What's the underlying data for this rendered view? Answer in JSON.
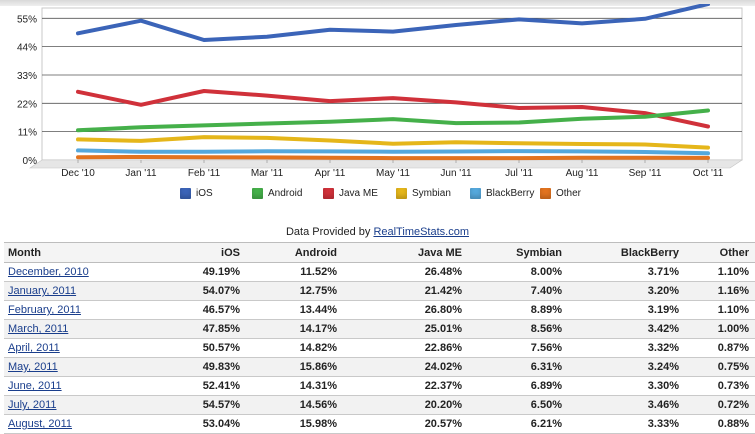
{
  "chart_data": {
    "type": "line",
    "categories": [
      "Dec '10",
      "Jan '11",
      "Feb '11",
      "Mar '11",
      "Apr '11",
      "May '11",
      "Jun '11",
      "Jul '11",
      "Aug '11",
      "Sep '11",
      "Oct '11"
    ],
    "y_ticks": [
      "0%",
      "11%",
      "22%",
      "33%",
      "44%",
      "55%"
    ],
    "ylim": [
      0,
      59
    ],
    "grid": true,
    "legend_position": "bottom",
    "series": [
      {
        "name": "iOS",
        "color": "#3b64b8",
        "values": [
          49.19,
          54.07,
          46.57,
          47.85,
          50.57,
          49.83,
          52.41,
          54.57,
          53.04,
          54.8,
          60.5
        ]
      },
      {
        "name": "Android",
        "color": "#45b04a",
        "values": [
          11.52,
          12.75,
          13.44,
          14.17,
          14.82,
          15.86,
          14.31,
          14.56,
          15.98,
          16.8,
          19.2
        ]
      },
      {
        "name": "Java ME",
        "color": "#d0313a",
        "values": [
          26.48,
          21.42,
          26.8,
          25.01,
          22.86,
          24.02,
          22.37,
          20.2,
          20.57,
          18.2,
          13.0
        ]
      },
      {
        "name": "Symbian",
        "color": "#e5b61a",
        "values": [
          8.0,
          7.4,
          8.89,
          8.56,
          7.56,
          6.31,
          6.89,
          6.5,
          6.21,
          6.0,
          4.8
        ]
      },
      {
        "name": "BlackBerry",
        "color": "#55a8dc",
        "values": [
          3.71,
          3.2,
          3.19,
          3.42,
          3.32,
          3.24,
          3.3,
          3.46,
          3.33,
          3.1,
          2.6
        ]
      },
      {
        "name": "Other",
        "color": "#e2731f",
        "values": [
          1.1,
          1.16,
          1.1,
          1.0,
          0.87,
          0.75,
          0.73,
          0.72,
          0.88,
          0.9,
          0.8
        ]
      }
    ]
  },
  "provided": {
    "text": "Data Provided by",
    "link": "RealTimeStats.com"
  },
  "table": {
    "headers": [
      "Month",
      "iOS",
      "Android",
      "Java ME",
      "Symbian",
      "BlackBerry",
      "Other"
    ],
    "rows": [
      [
        "December, 2010",
        "49.19%",
        "11.52%",
        "26.48%",
        "8.00%",
        "3.71%",
        "1.10%"
      ],
      [
        "January, 2011",
        "54.07%",
        "12.75%",
        "21.42%",
        "7.40%",
        "3.20%",
        "1.16%"
      ],
      [
        "February, 2011",
        "46.57%",
        "13.44%",
        "26.80%",
        "8.89%",
        "3.19%",
        "1.10%"
      ],
      [
        "March, 2011",
        "47.85%",
        "14.17%",
        "25.01%",
        "8.56%",
        "3.42%",
        "1.00%"
      ],
      [
        "April, 2011",
        "50.57%",
        "14.82%",
        "22.86%",
        "7.56%",
        "3.32%",
        "0.87%"
      ],
      [
        "May, 2011",
        "49.83%",
        "15.86%",
        "24.02%",
        "6.31%",
        "3.24%",
        "0.75%"
      ],
      [
        "June, 2011",
        "52.41%",
        "14.31%",
        "22.37%",
        "6.89%",
        "3.30%",
        "0.73%"
      ],
      [
        "July, 2011",
        "54.57%",
        "14.56%",
        "20.20%",
        "6.50%",
        "3.46%",
        "0.72%"
      ],
      [
        "August, 2011",
        "53.04%",
        "15.98%",
        "20.57%",
        "6.21%",
        "3.33%",
        "0.88%"
      ]
    ]
  }
}
